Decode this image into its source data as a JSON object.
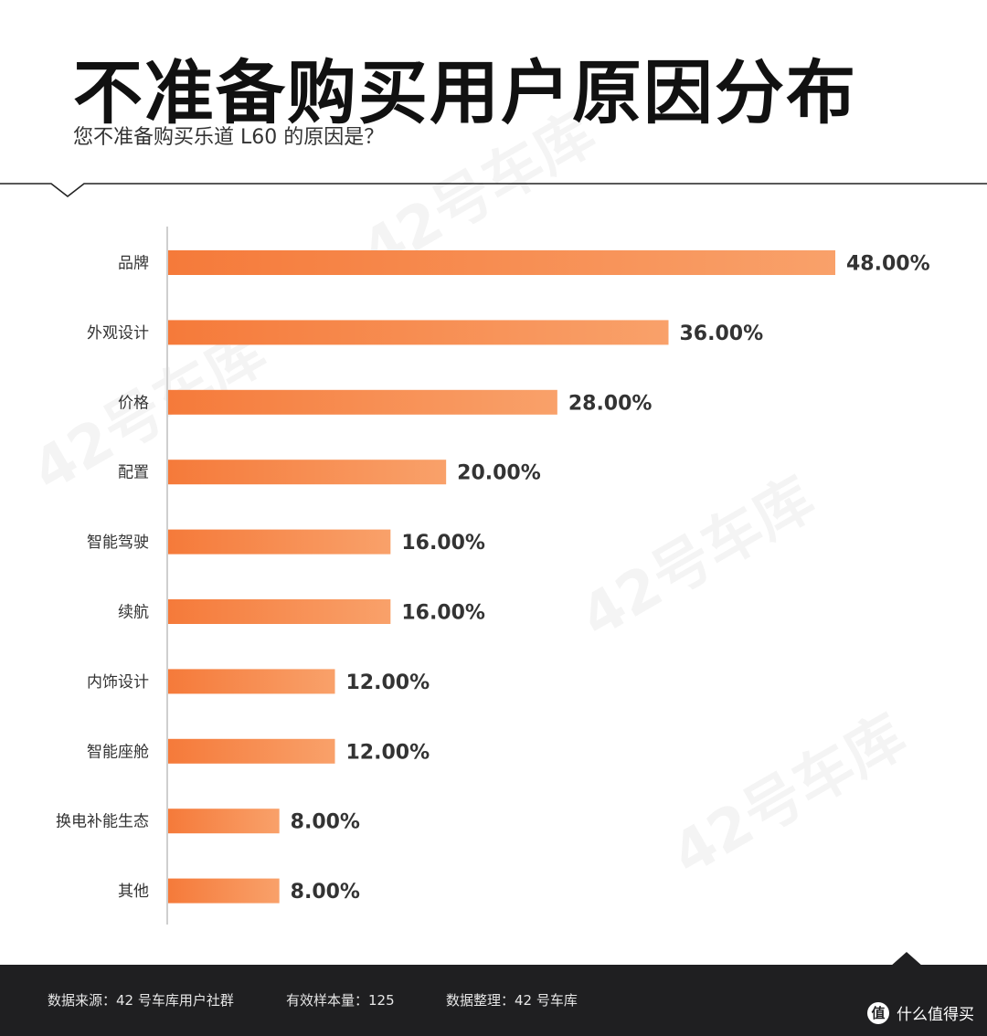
{
  "header": {
    "title": "不准备购买用户原因分布",
    "subtitle": "您不准备购买乐道 L60 的原因是？"
  },
  "chart_data": {
    "type": "bar",
    "orientation": "horizontal",
    "categories": [
      "品牌",
      "外观设计",
      "价格",
      "配置",
      "智能驾驶",
      "续航",
      "内饰设计",
      "智能座舱",
      "换电补能生态",
      "其他"
    ],
    "values": [
      48.0,
      36.0,
      28.0,
      20.0,
      16.0,
      16.0,
      12.0,
      12.0,
      8.0,
      8.0
    ],
    "value_labels": [
      "48.00%",
      "36.00%",
      "28.00%",
      "20.00%",
      "16.00%",
      "16.00%",
      "12.00%",
      "12.00%",
      "8.00%",
      "8.00%"
    ],
    "xlim": [
      0,
      48
    ],
    "grid": false,
    "legend": "none",
    "colors": {
      "bar_start": "#f57a3a",
      "bar_end": "#f9a16a"
    }
  },
  "footer": {
    "source": "数据来源：42 号车库用户社群",
    "sample": "有效样本量：125",
    "compiled": "数据整理：42 号车库",
    "brand": "什么值得买",
    "brand_icon": "值"
  },
  "watermark": "42号车库"
}
